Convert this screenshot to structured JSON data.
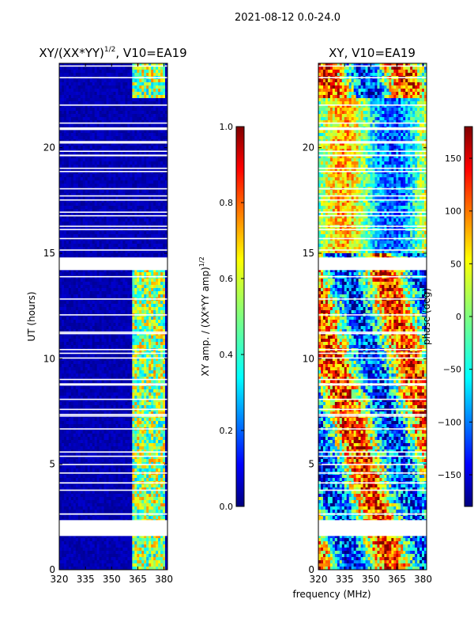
{
  "suptitle": "2021-08-12 0.0-24.0",
  "chart_data": [
    {
      "type": "heatmap",
      "title": "XY/(XX*YY)",
      "title_superscript": "1/2",
      "title_suffix": ", V10=EA19",
      "xlabel": "",
      "ylabel": "UT (hours)",
      "xlim": [
        320,
        382
      ],
      "ylim": [
        0,
        24
      ],
      "x_ticks": [
        "320",
        "335",
        "350",
        "365",
        "380"
      ],
      "x_tick_values": [
        320,
        335,
        350,
        365,
        380
      ],
      "y_ticks": [
        "0",
        "5",
        "10",
        "15",
        "20"
      ],
      "y_tick_values": [
        0,
        5,
        10,
        15,
        20
      ],
      "colorbar": {
        "label": "XY amp. / (XX*YY amp)",
        "label_superscript": "1/2",
        "range": [
          0.0,
          1.0
        ],
        "ticks": [
          "0.0",
          "0.2",
          "0.4",
          "0.6",
          "0.8",
          "1.0"
        ],
        "tick_values": [
          0.0,
          0.2,
          0.4,
          0.6,
          0.8,
          1.0
        ]
      }
    },
    {
      "type": "heatmap",
      "title": "XY, V10=EA19",
      "xlabel": "frequency (MHz)",
      "ylabel": "",
      "xlim": [
        320,
        382
      ],
      "ylim": [
        0,
        24
      ],
      "x_ticks": [
        "320",
        "335",
        "350",
        "365",
        "380"
      ],
      "x_tick_values": [
        320,
        335,
        350,
        365,
        380
      ],
      "y_ticks": [
        "0",
        "5",
        "10",
        "15",
        "20"
      ],
      "y_tick_values": [
        0,
        5,
        10,
        15,
        20
      ],
      "colorbar": {
        "label": "phase (deg)",
        "range": [
          -180,
          180
        ],
        "ticks": [
          "−150",
          "−100",
          "−50",
          "0",
          "50",
          "100",
          "150"
        ],
        "tick_values": [
          -150,
          -100,
          -50,
          0,
          50,
          100,
          150
        ]
      }
    }
  ],
  "colormap": [
    "#00007f",
    "#0000ff",
    "#007fff",
    "#00ffff",
    "#7fff7f",
    "#ffff00",
    "#ff7f00",
    "#ff0000",
    "#7f0000"
  ]
}
